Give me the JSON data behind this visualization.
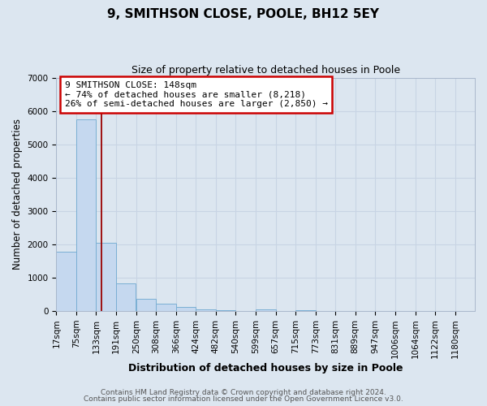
{
  "title": "9, SMITHSON CLOSE, POOLE, BH12 5EY",
  "subtitle": "Size of property relative to detached houses in Poole",
  "xlabel": "Distribution of detached houses by size in Poole",
  "ylabel": "Number of detached properties",
  "bar_left_edges": [
    17,
    75,
    133,
    191,
    250,
    308,
    366,
    424,
    482,
    540,
    599,
    657,
    715,
    773,
    831,
    889,
    947,
    1006,
    1064,
    1122
  ],
  "bar_heights": [
    1780,
    5750,
    2050,
    820,
    370,
    230,
    110,
    60,
    30,
    0,
    50,
    0,
    30,
    0,
    0,
    0,
    0,
    0,
    0,
    0
  ],
  "bin_width": 58,
  "bar_color": "#c5d8ef",
  "bar_edge_color": "#7aafd4",
  "vline_x": 148,
  "vline_color": "#990000",
  "ylim": [
    0,
    7000
  ],
  "yticks": [
    0,
    1000,
    2000,
    3000,
    4000,
    5000,
    6000,
    7000
  ],
  "xtick_labels": [
    "17sqm",
    "75sqm",
    "133sqm",
    "191sqm",
    "250sqm",
    "308sqm",
    "366sqm",
    "424sqm",
    "482sqm",
    "540sqm",
    "599sqm",
    "657sqm",
    "715sqm",
    "773sqm",
    "831sqm",
    "889sqm",
    "947sqm",
    "1006sqm",
    "1064sqm",
    "1122sqm",
    "1180sqm"
  ],
  "annotation_title": "9 SMITHSON CLOSE: 148sqm",
  "annotation_line1": "← 74% of detached houses are smaller (8,218)",
  "annotation_line2": "26% of semi-detached houses are larger (2,850) →",
  "annotation_box_facecolor": "#ffffff",
  "annotation_box_edge_color": "#cc0000",
  "grid_color": "#c8d4e4",
  "plot_bg_color": "#dce6f0",
  "fig_bg_color": "#dce6f0",
  "footer1": "Contains HM Land Registry data © Crown copyright and database right 2024.",
  "footer2": "Contains public sector information licensed under the Open Government Licence v3.0.",
  "title_fontsize": 11,
  "subtitle_fontsize": 9,
  "xlabel_fontsize": 9,
  "ylabel_fontsize": 8.5,
  "tick_fontsize": 7.5,
  "annotation_fontsize": 8,
  "footer_fontsize": 6.5
}
